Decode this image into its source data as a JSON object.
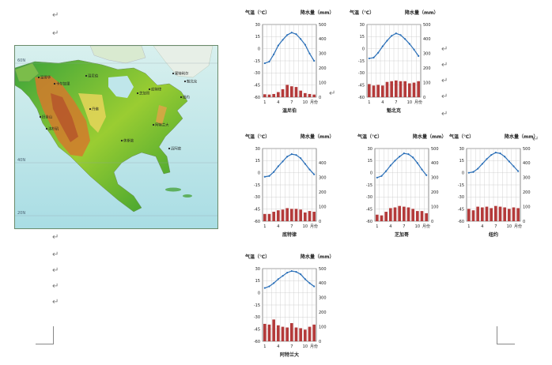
{
  "document": {
    "paragraph_mark": "↵",
    "map": {
      "latitude_labels": [
        "60N",
        "40N",
        "20N"
      ],
      "cities": [
        {
          "name": "温尼伯",
          "x": 90,
          "y": 38
        },
        {
          "name": "蒙特利尔",
          "x": 200,
          "y": 35
        },
        {
          "name": "魁北克",
          "x": 215,
          "y": 45
        },
        {
          "name": "温哥华",
          "x": 30,
          "y": 40
        },
        {
          "name": "卡尔加里",
          "x": 50,
          "y": 48
        },
        {
          "name": "芝加哥",
          "x": 155,
          "y": 60
        },
        {
          "name": "底特律",
          "x": 170,
          "y": 55
        },
        {
          "name": "纽约",
          "x": 210,
          "y": 65
        },
        {
          "name": "旧金山",
          "x": 32,
          "y": 90
        },
        {
          "name": "洛杉矶",
          "x": 40,
          "y": 105
        },
        {
          "name": "丹佛",
          "x": 95,
          "y": 80
        },
        {
          "name": "阿特兰大",
          "x": 175,
          "y": 100
        },
        {
          "name": "休斯敦",
          "x": 135,
          "y": 120
        },
        {
          "name": "迈阿密",
          "x": 195,
          "y": 130
        }
      ]
    },
    "charts_common": {
      "left_axis_title": "气温（℃）",
      "right_axis_title": "降水量（mm）",
      "x_unit": "月份",
      "x_tick_labels": [
        "1",
        "4",
        "7",
        "10"
      ]
    }
  },
  "chart_data": [
    {
      "type": "line+bar",
      "name": "温尼伯",
      "x": [
        1,
        2,
        3,
        4,
        5,
        6,
        7,
        8,
        9,
        10,
        11,
        12
      ],
      "temperature_c": [
        -18,
        -16,
        -7,
        4,
        11,
        17,
        20,
        18,
        12,
        5,
        -6,
        -15
      ],
      "precipitation_mm": [
        20,
        18,
        22,
        35,
        55,
        85,
        75,
        70,
        45,
        28,
        22,
        18
      ],
      "temp_ylim": [
        -60,
        30
      ],
      "precip_ylim": [
        0,
        500
      ],
      "temp_ticks": [
        30,
        15,
        0,
        -15,
        -30,
        -45,
        -60
      ],
      "precip_ticks": [
        500,
        400,
        300,
        200,
        100,
        0
      ]
    },
    {
      "type": "line+bar",
      "name": "魁北克",
      "x": [
        1,
        2,
        3,
        4,
        5,
        6,
        7,
        8,
        9,
        10,
        11,
        12
      ],
      "temperature_c": [
        -12,
        -11,
        -5,
        3,
        10,
        16,
        19,
        17,
        12,
        6,
        -1,
        -9
      ],
      "precipitation_mm": [
        90,
        80,
        85,
        80,
        105,
        110,
        115,
        110,
        110,
        95,
        100,
        110
      ],
      "temp_ylim": [
        -60,
        30
      ],
      "precip_ylim": [
        0,
        500
      ],
      "temp_ticks": [
        30,
        15,
        0,
        -15,
        -30,
        -45,
        -60
      ],
      "precip_ticks": [
        500,
        400,
        300,
        200,
        100,
        0
      ]
    },
    {
      "type": "line+bar",
      "name": "底特律",
      "x": [
        1,
        2,
        3,
        4,
        5,
        6,
        7,
        8,
        9,
        10,
        11,
        12
      ],
      "temperature_c": [
        -5,
        -4,
        1,
        8,
        14,
        20,
        23,
        22,
        18,
        11,
        4,
        -2
      ],
      "precipitation_mm": [
        50,
        50,
        65,
        75,
        80,
        90,
        85,
        85,
        80,
        60,
        70,
        65
      ],
      "temp_ylim": [
        -60,
        30
      ],
      "precip_ylim": [
        0,
        500
      ],
      "temp_ticks": [
        30,
        15,
        0,
        -15,
        -30,
        -45,
        -60
      ],
      "precip_ticks": [
        400,
        300,
        200,
        100,
        0
      ]
    },
    {
      "type": "line+bar",
      "name": "芝加哥",
      "x": [
        1,
        2,
        3,
        4,
        5,
        6,
        7,
        8,
        9,
        10,
        11,
        12
      ],
      "temperature_c": [
        -6,
        -4,
        2,
        9,
        15,
        20,
        24,
        23,
        19,
        12,
        4,
        -3
      ],
      "precipitation_mm": [
        45,
        40,
        65,
        90,
        95,
        105,
        100,
        95,
        85,
        70,
        70,
        55
      ],
      "temp_ylim": [
        -60,
        30
      ],
      "precip_ylim": [
        0,
        500
      ],
      "temp_ticks": [
        30,
        15,
        0,
        -15,
        -30,
        -45,
        -60
      ],
      "precip_ticks": [
        500,
        400,
        300,
        200,
        100,
        0
      ]
    },
    {
      "type": "line+bar",
      "name": "纽约",
      "x": [
        1,
        2,
        3,
        4,
        5,
        6,
        7,
        8,
        9,
        10,
        11,
        12
      ],
      "temperature_c": [
        0,
        1,
        5,
        11,
        17,
        22,
        25,
        24,
        20,
        14,
        8,
        2
      ],
      "precipitation_mm": [
        85,
        75,
        100,
        95,
        100,
        90,
        105,
        100,
        95,
        85,
        95,
        90
      ],
      "temp_ylim": [
        -60,
        30
      ],
      "precip_ylim": [
        0,
        500
      ],
      "temp_ticks": [
        30,
        15,
        0,
        -15,
        -30,
        -45,
        -60
      ],
      "precip_ticks": [
        500,
        400,
        300,
        200,
        100,
        0
      ]
    },
    {
      "type": "line+bar",
      "name": "阿特兰大",
      "x": [
        1,
        2,
        3,
        4,
        5,
        6,
        7,
        8,
        9,
        10,
        11,
        12
      ],
      "temperature_c": [
        6,
        8,
        12,
        17,
        21,
        25,
        27,
        26,
        23,
        17,
        12,
        8
      ],
      "precipitation_mm": [
        120,
        115,
        150,
        110,
        100,
        95,
        125,
        95,
        90,
        80,
        100,
        115
      ],
      "temp_ylim": [
        -60,
        30
      ],
      "precip_ylim": [
        0,
        500
      ],
      "temp_ticks": [
        30,
        15,
        0,
        -15,
        -30,
        -45,
        -60
      ],
      "precip_ticks": [
        500,
        400,
        300,
        200,
        100,
        0
      ]
    }
  ]
}
